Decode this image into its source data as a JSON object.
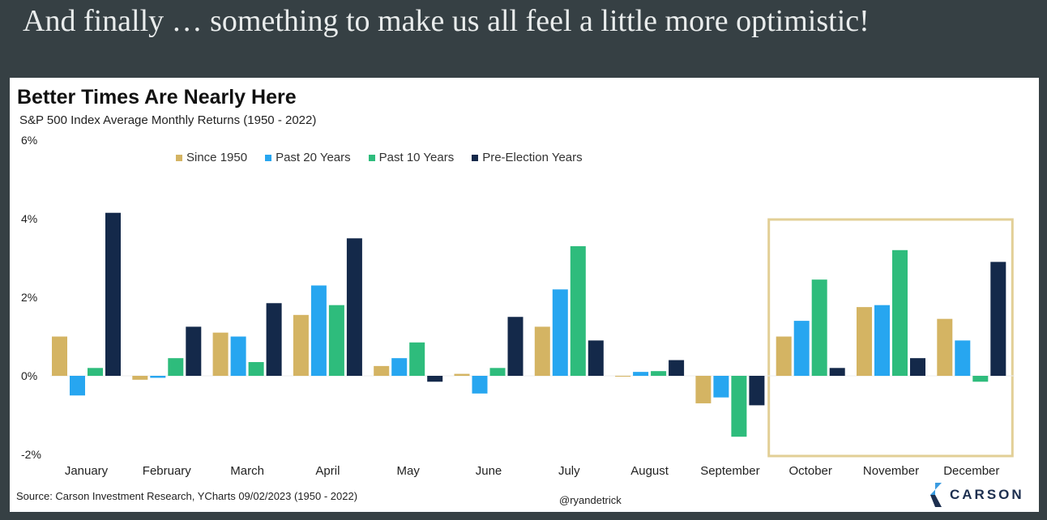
{
  "slide": {
    "headline": "And finally … something to make us all feel a little more optimistic!"
  },
  "footer": {
    "source": "Source: Carson Investment Research, YCharts 09/02/2023 (1950 - 2022)",
    "handle": "@ryandetrick",
    "logo_text": "CARSON"
  },
  "colors": {
    "background": "#364044",
    "highlight_box": "#e2cf96"
  },
  "chart_data": {
    "type": "bar",
    "title": "Better Times Are Nearly Here",
    "subtitle": "S&P 500 Index Average Monthly Returns (1950 - 2022)",
    "xlabel": "",
    "ylabel": "",
    "ylim": [
      -2,
      6
    ],
    "yticks": [
      -2,
      0,
      2,
      4,
      6
    ],
    "ytick_labels": [
      "-2%",
      "0%",
      "2%",
      "4%",
      "6%"
    ],
    "grid": false,
    "legend_position": "top",
    "categories": [
      "January",
      "February",
      "March",
      "April",
      "May",
      "June",
      "July",
      "August",
      "September",
      "October",
      "November",
      "December"
    ],
    "series": [
      {
        "name": "Since 1950",
        "color": "#d4b463",
        "values": [
          1.0,
          -0.1,
          1.1,
          1.55,
          0.25,
          0.05,
          1.25,
          0.0,
          -0.7,
          1.0,
          1.75,
          1.45
        ]
      },
      {
        "name": "Past 20 Years",
        "color": "#27a6f0",
        "values": [
          -0.5,
          -0.05,
          1.0,
          2.3,
          0.45,
          -0.45,
          2.2,
          0.1,
          -0.55,
          1.4,
          1.8,
          0.9
        ]
      },
      {
        "name": "Past 10 Years",
        "color": "#2ebc7c",
        "values": [
          0.2,
          0.45,
          0.35,
          1.8,
          0.85,
          0.2,
          3.3,
          0.12,
          -1.55,
          2.45,
          3.2,
          -0.15
        ]
      },
      {
        "name": "Pre-Election Years",
        "color": "#14294a",
        "values": [
          4.15,
          1.25,
          1.85,
          3.5,
          -0.15,
          1.5,
          0.9,
          0.4,
          -0.75,
          0.2,
          0.45,
          2.9
        ]
      }
    ],
    "highlight": {
      "months": [
        "October",
        "November",
        "December"
      ]
    }
  }
}
